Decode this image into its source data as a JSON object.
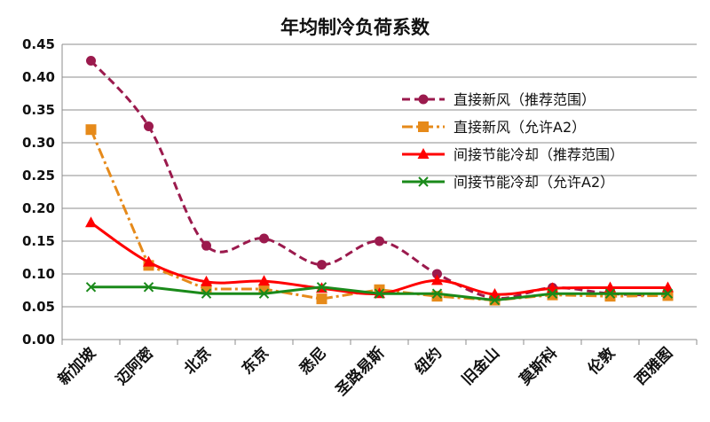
{
  "chart_data": {
    "type": "line",
    "title": "年均制冷负荷系数",
    "xlabel": "",
    "ylabel": "",
    "categories": [
      "新加坡",
      "迈阿密",
      "北京",
      "东京",
      "悉尼",
      "圣路易斯",
      "纽约",
      "旧金山",
      "莫斯科",
      "伦敦",
      "西雅图"
    ],
    "ylim": [
      0,
      0.45
    ],
    "yticks": [
      "0.00",
      "0.05",
      "0.10",
      "0.15",
      "0.20",
      "0.25",
      "0.30",
      "0.35",
      "0.40",
      "0.45"
    ],
    "grid": true,
    "legend_position": "right",
    "series": [
      {
        "name": "直接新风（推荐范围）",
        "color": "#9b1a4d",
        "marker": "circle",
        "dash": "dashed",
        "smooth": true,
        "values": [
          0.425,
          0.325,
          0.143,
          0.154,
          0.114,
          0.15,
          0.1,
          0.063,
          0.079,
          0.07,
          0.067
        ]
      },
      {
        "name": "直接新风（允许A2）",
        "color": "#e68a1a",
        "marker": "square",
        "dash": "dashdot",
        "smooth": false,
        "values": [
          0.32,
          0.113,
          0.077,
          0.077,
          0.062,
          0.076,
          0.066,
          0.06,
          0.068,
          0.066,
          0.067
        ]
      },
      {
        "name": "间接节能冷却（推荐范围）",
        "color": "#ff0000",
        "marker": "triangle",
        "dash": "solid",
        "smooth": true,
        "values": [
          0.178,
          0.118,
          0.088,
          0.089,
          0.078,
          0.07,
          0.09,
          0.069,
          0.078,
          0.079,
          0.079
        ]
      },
      {
        "name": "间接节能冷却（允许A2）",
        "color": "#1a8a1a",
        "marker": "x",
        "dash": "solid",
        "smooth": false,
        "values": [
          0.08,
          0.08,
          0.07,
          0.07,
          0.08,
          0.07,
          0.07,
          0.06,
          0.07,
          0.07,
          0.07
        ]
      }
    ]
  }
}
